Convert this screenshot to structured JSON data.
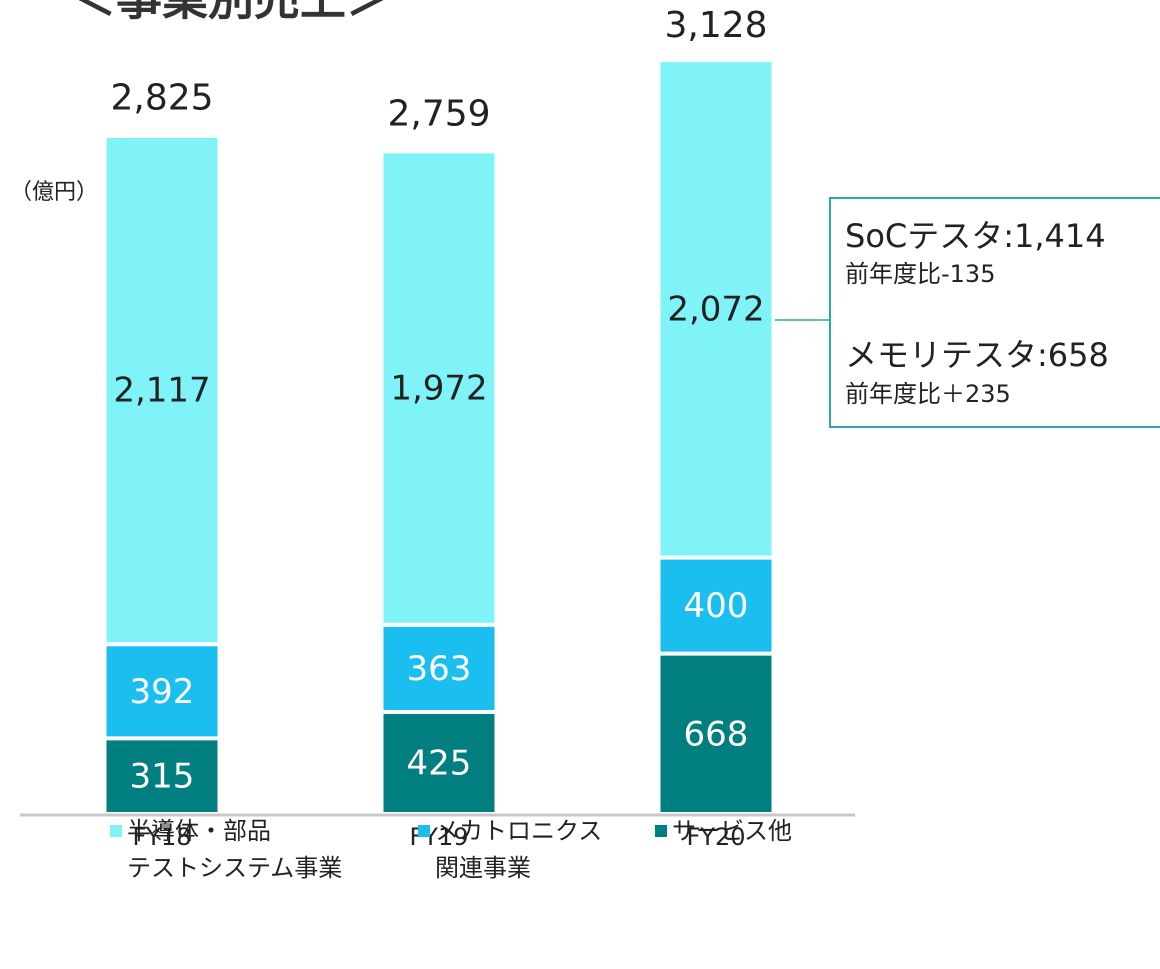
{
  "chart_data": {
    "type": "stacked_bar",
    "title": "＜事業別売上＞",
    "unit_label": "（億円）",
    "categories": [
      "FY18",
      "FY19",
      "FY20"
    ],
    "series": [
      {
        "name": "サービス他",
        "color": "#007e80",
        "values": [
          315,
          425,
          668
        ]
      },
      {
        "name": "メカトロニクス\n関連事業",
        "color": "#1abff0",
        "values": [
          392,
          363,
          400
        ]
      },
      {
        "name": "半導体・部品\nテストシステム事業",
        "color": "#80f3f9",
        "values": [
          2117,
          1972,
          2072
        ]
      }
    ],
    "totals": [
      2825,
      2759,
      3128
    ],
    "total_labels": [
      "2,825",
      "2,759",
      "3,128"
    ],
    "value_labels": [
      [
        "315",
        "425",
        "668"
      ],
      [
        "392",
        "363",
        "400"
      ],
      [
        "2,117",
        "1,972",
        "2,072"
      ]
    ],
    "annotation": [
      "SoCテスタ:1,414",
      "前年度比-135",
      "メモリテスタ:658",
      "前年度比＋235"
    ]
  }
}
